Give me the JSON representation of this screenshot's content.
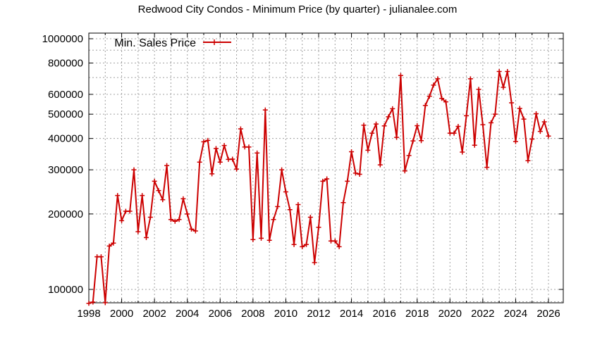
{
  "chart_data": {
    "type": "line",
    "title": "Redwood City Condos - Minimum Price (by quarter) - julianalee.com",
    "xlabel": "",
    "ylabel": "",
    "y_scale": "log",
    "ylim": [
      88000,
      1050000
    ],
    "xlim": [
      1998,
      2026.9
    ],
    "grid": true,
    "legend_position": "top-left",
    "x_ticks": [
      1998,
      2000,
      2002,
      2004,
      2006,
      2008,
      2010,
      2012,
      2014,
      2016,
      2018,
      2020,
      2022,
      2024,
      2026
    ],
    "y_ticks": [
      100000,
      200000,
      300000,
      400000,
      500000,
      600000,
      800000,
      1000000
    ],
    "series": [
      {
        "name": "Min. Sales Price",
        "color": "#cc0000",
        "marker": "+",
        "x": [
          1998.0,
          1998.25,
          1998.5,
          1998.75,
          1999.0,
          1999.25,
          1999.5,
          1999.75,
          2000.0,
          2000.25,
          2000.5,
          2000.75,
          2001.0,
          2001.25,
          2001.5,
          2001.75,
          2002.0,
          2002.25,
          2002.5,
          2002.75,
          2003.0,
          2003.25,
          2003.5,
          2003.75,
          2004.0,
          2004.25,
          2004.5,
          2004.75,
          2005.0,
          2005.25,
          2005.5,
          2005.75,
          2006.0,
          2006.25,
          2006.5,
          2006.75,
          2007.0,
          2007.25,
          2007.5,
          2007.75,
          2008.0,
          2008.25,
          2008.5,
          2008.75,
          2009.0,
          2009.25,
          2009.5,
          2009.75,
          2010.0,
          2010.25,
          2010.5,
          2010.75,
          2011.0,
          2011.25,
          2011.5,
          2011.75,
          2012.0,
          2012.25,
          2012.5,
          2012.75,
          2013.0,
          2013.25,
          2013.5,
          2013.75,
          2014.0,
          2014.25,
          2014.5,
          2014.75,
          2015.0,
          2015.25,
          2015.5,
          2015.75,
          2016.0,
          2016.25,
          2016.5,
          2016.75,
          2017.0,
          2017.25,
          2017.5,
          2017.75,
          2018.0,
          2018.25,
          2018.5,
          2018.75,
          2019.0,
          2019.25,
          2019.5,
          2019.75,
          2020.0,
          2020.25,
          2020.5,
          2020.75,
          2021.0,
          2021.25,
          2021.5,
          2021.75,
          2022.0,
          2022.25,
          2022.5,
          2022.75,
          2023.0,
          2023.25,
          2023.5,
          2023.75,
          2024.0,
          2024.25,
          2024.5,
          2024.75,
          2025.0,
          2025.25,
          2025.5,
          2025.75,
          2026.0
        ],
        "values": [
          88000,
          89000,
          135000,
          135000,
          88500,
          149000,
          153000,
          237000,
          188000,
          205000,
          205000,
          300000,
          170000,
          237000,
          161000,
          194000,
          270000,
          248000,
          228000,
          312000,
          190000,
          187000,
          190000,
          230000,
          200000,
          174000,
          171000,
          322000,
          388000,
          393000,
          289000,
          365000,
          322000,
          375000,
          330000,
          331000,
          302000,
          437000,
          370000,
          370000,
          158000,
          350000,
          160000,
          520000,
          157000,
          190000,
          214000,
          300000,
          245000,
          208000,
          151000,
          218000,
          148000,
          151000,
          194000,
          128000,
          177000,
          270000,
          276000,
          156000,
          156000,
          148000,
          222000,
          270000,
          354000,
          291000,
          288000,
          452000,
          359000,
          420000,
          457000,
          314000,
          449000,
          488000,
          526000,
          404000,
          713000,
          297000,
          342000,
          391000,
          450000,
          392000,
          542000,
          590000,
          653000,
          692000,
          578000,
          560000,
          420000,
          420000,
          447000,
          353000,
          493000,
          692000,
          376000,
          628000,
          454000,
          307000,
          462000,
          500000,
          740000,
          640000,
          740000,
          555000,
          389000,
          527000,
          478000,
          326000,
          398000,
          502000,
          427000,
          466000,
          409000
        ]
      }
    ]
  },
  "legend": {
    "label": "Min. Sales Price"
  }
}
